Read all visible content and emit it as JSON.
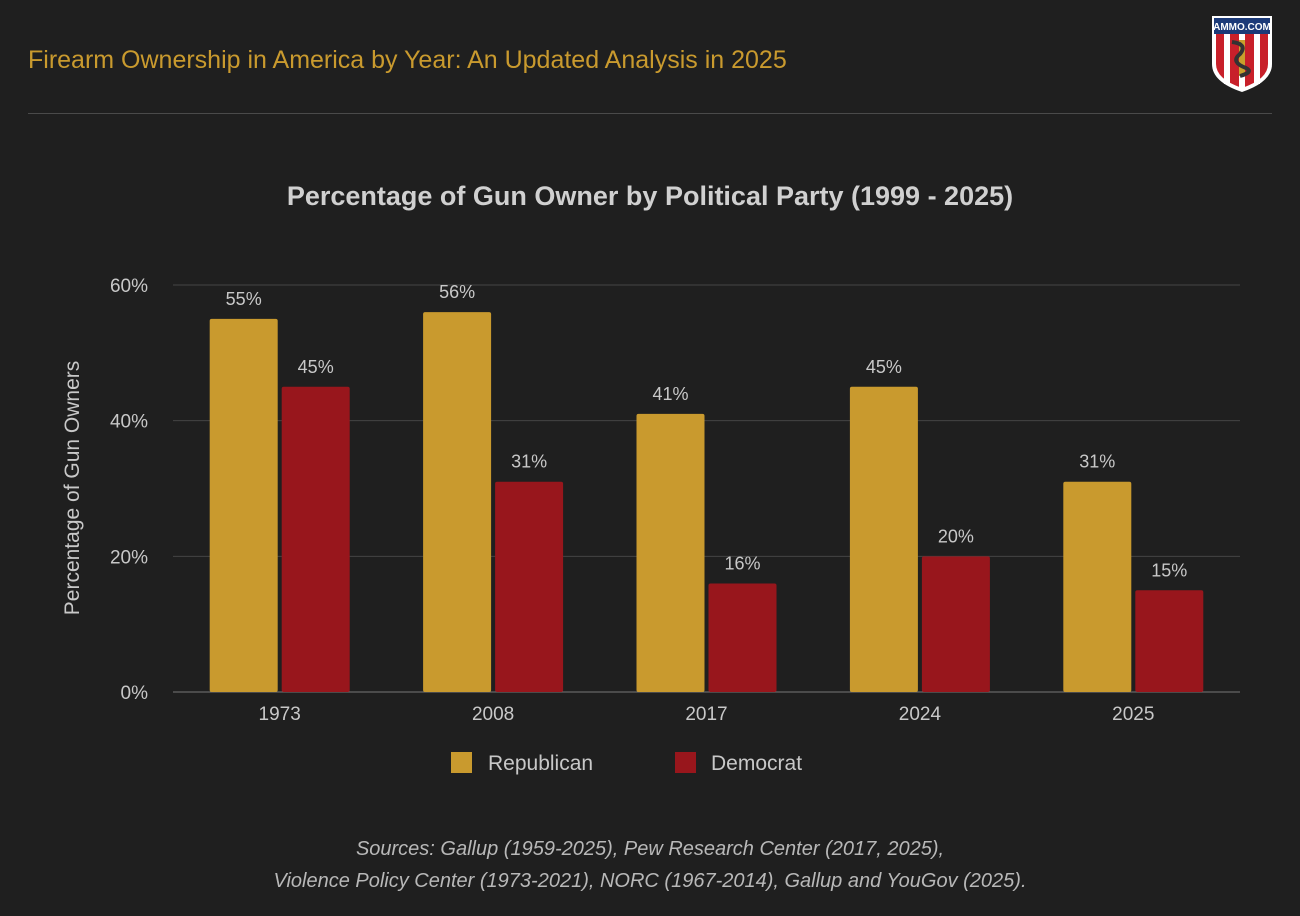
{
  "header": {
    "title": "Firearm Ownership in America by Year: An Updated Analysis in 2025",
    "logo_text": "AMMO.COM"
  },
  "chart_data": {
    "type": "bar",
    "title": "Percentage of Gun Owner by Political Party (1999 - 2025)",
    "xlabel": "",
    "ylabel": "Percentage of Gun Owners",
    "ylim": [
      0,
      60
    ],
    "yticks": [
      "0%",
      "20%",
      "40%",
      "60%"
    ],
    "categories": [
      "1973",
      "2008",
      "2017",
      "2024",
      "2025"
    ],
    "series": [
      {
        "name": "Republican",
        "color": "#c99a2e",
        "values": [
          55,
          56,
          41,
          45,
          31
        ],
        "labels": [
          "55%",
          "56%",
          "41%",
          "45%",
          "31%"
        ]
      },
      {
        "name": "Democrat",
        "color": "#98161c",
        "values": [
          45,
          31,
          16,
          20,
          15
        ],
        "labels": [
          "45%",
          "31%",
          "16%",
          "20%",
          "15%"
        ]
      }
    ],
    "grid": true,
    "legend": "bottom"
  },
  "sources": {
    "line1": "Sources: Gallup (1959-2025), Pew Research Center (2017, 2025),",
    "line2": "Violence Policy Center (1973-2021), NORC (1967-2014), Gallup and YouGov (2025)."
  }
}
